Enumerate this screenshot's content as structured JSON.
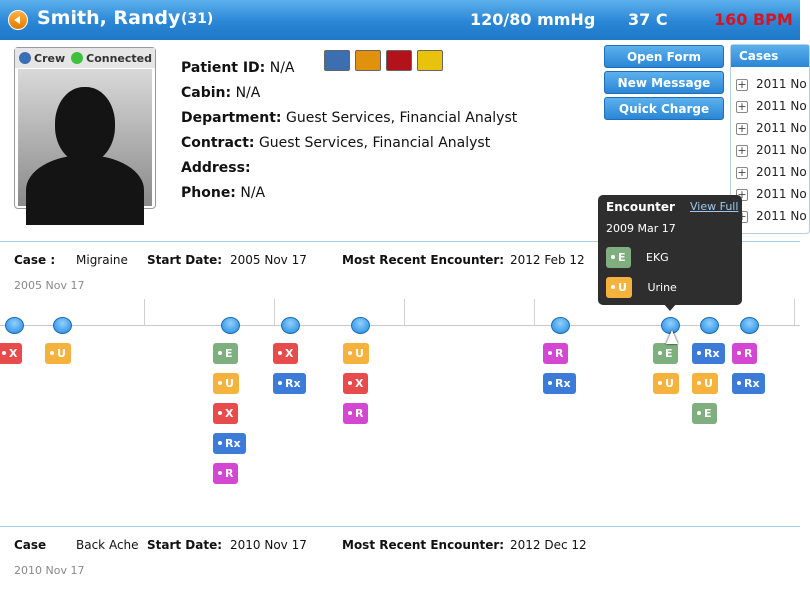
{
  "header": {
    "name": "Smith, Randy",
    "age": "(31)",
    "blood_pressure": "120/80 mmHg",
    "temperature": "37 C",
    "heart_rate": "160 BPM"
  },
  "photo": {
    "status_crew": "Crew",
    "status_connected": "Connected"
  },
  "patient": {
    "id_label": "Patient ID:",
    "id_value": "N/A",
    "cabin_label": "Cabin:",
    "cabin_value": "N/A",
    "dept_label": "Department:",
    "dept_value": "Guest Services, Financial Analyst",
    "contract_label": "Contract:",
    "contract_value": "Guest Services, Financial Analyst",
    "address_label": "Address:",
    "address_value": "",
    "phone_label": "Phone:",
    "phone_value": "N/A"
  },
  "swatches": [
    "#3b6fb0",
    "#e0920f",
    "#b3121a",
    "#e8c20c"
  ],
  "actions": {
    "open_form": "Open Form",
    "new_message": "New Message",
    "quick_charge": "Quick Charge"
  },
  "cases_panel": {
    "title": "Cases",
    "items": [
      "2011 No",
      "2011 No",
      "2011 No",
      "2011 No",
      "2011 No",
      "2011 No",
      "2011 No"
    ]
  },
  "case1": {
    "case_label": "Case :",
    "case_value": "Migraine",
    "start_label": "Start Date:",
    "start_value": "2005 Nov 17",
    "recent_label": "Most Recent Encounter:",
    "recent_value": "2012 Feb 12",
    "sub_date": "2005 Nov 17"
  },
  "case2": {
    "case_label": "Case",
    "case_value": "Back Ache",
    "start_label": "Start Date:",
    "start_value": "2010 Nov 17",
    "recent_label": "Most Recent Encounter:",
    "recent_value": "2012 Dec 12",
    "sub_date": "2010 Nov 17"
  },
  "popup": {
    "title": "Encounter",
    "view_full": "View Full",
    "date": "2009 Mar 17",
    "items": [
      {
        "code": "E",
        "label": "EKG"
      },
      {
        "code": "U",
        "label": "Urine"
      }
    ]
  },
  "tags": [
    [
      "X"
    ],
    [
      "U"
    ],
    [
      "E",
      "U",
      "X",
      "Rx",
      "R"
    ],
    [
      "X",
      "Rx"
    ],
    [
      "U",
      "X",
      "R"
    ],
    [
      "R",
      "Rx"
    ],
    [
      "E",
      "U"
    ],
    [
      "Rx",
      "U",
      "E"
    ],
    [
      "R",
      "Rx"
    ]
  ]
}
